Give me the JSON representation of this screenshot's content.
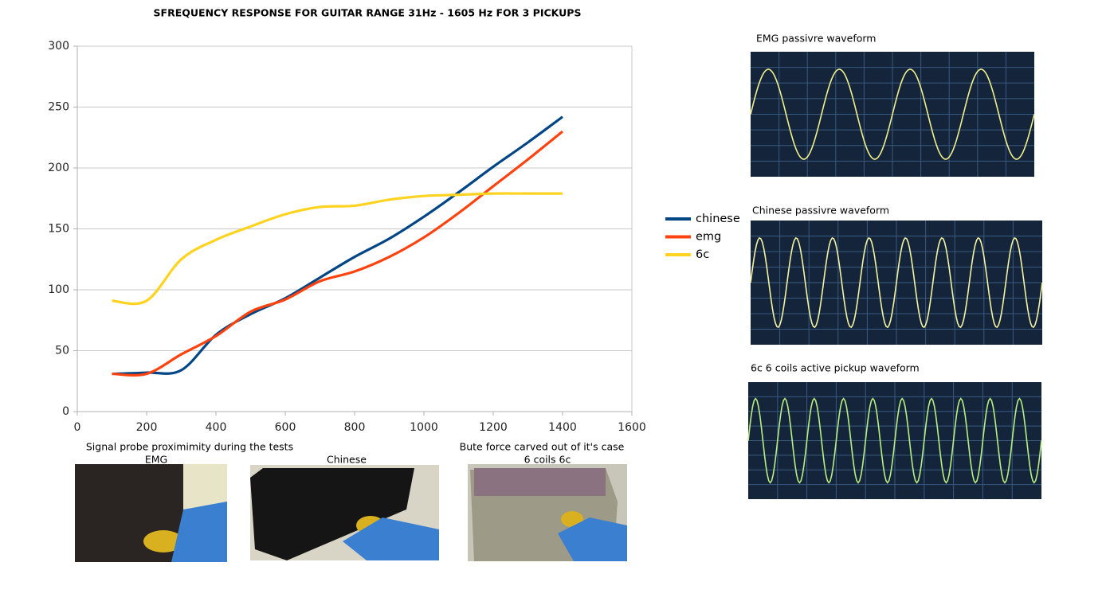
{
  "chart_data": {
    "type": "line",
    "title": "SFREQUENCY RESPONSE FOR GUITAR RANGE 31Hz  - 1605 Hz FOR 3 PICKUPS",
    "x": [
      100,
      200,
      300,
      400,
      500,
      600,
      700,
      800,
      900,
      1000,
      1100,
      1200,
      1300,
      1400
    ],
    "series": [
      {
        "name": "chinese",
        "color": "#004586",
        "values": [
          31,
          32,
          34,
          63,
          80,
          93,
          110,
          127,
          142,
          160,
          180,
          201,
          221,
          242
        ]
      },
      {
        "name": "emg",
        "color": "#ff420e",
        "values": [
          31,
          31,
          47,
          62,
          82,
          92,
          107,
          115,
          127,
          143,
          163,
          185,
          207,
          230
        ]
      },
      {
        "name": "6c",
        "color": "#ffd320",
        "values": [
          91,
          91,
          125,
          141,
          152,
          162,
          168,
          169,
          174,
          177,
          178,
          179,
          179,
          179
        ]
      }
    ],
    "xlim": [
      0,
      1600
    ],
    "xticks": [
      0,
      200,
      400,
      600,
      800,
      1000,
      1200,
      1400,
      1600
    ],
    "ylim": [
      0,
      300
    ],
    "yticks": [
      0,
      50,
      100,
      150,
      200,
      250,
      300
    ],
    "grid": true,
    "legend": "right"
  },
  "scopes": [
    "EMG passivre waveform",
    "Chinese passivre waveform",
    "6c 6 coils active pickup waveform"
  ],
  "photos": {
    "caption_left": "Signal probe proximimity during the tests",
    "caption_right": "Bute force carved out of it's case",
    "labels": [
      "EMG",
      "Chinese",
      "6 coils  6c"
    ]
  }
}
